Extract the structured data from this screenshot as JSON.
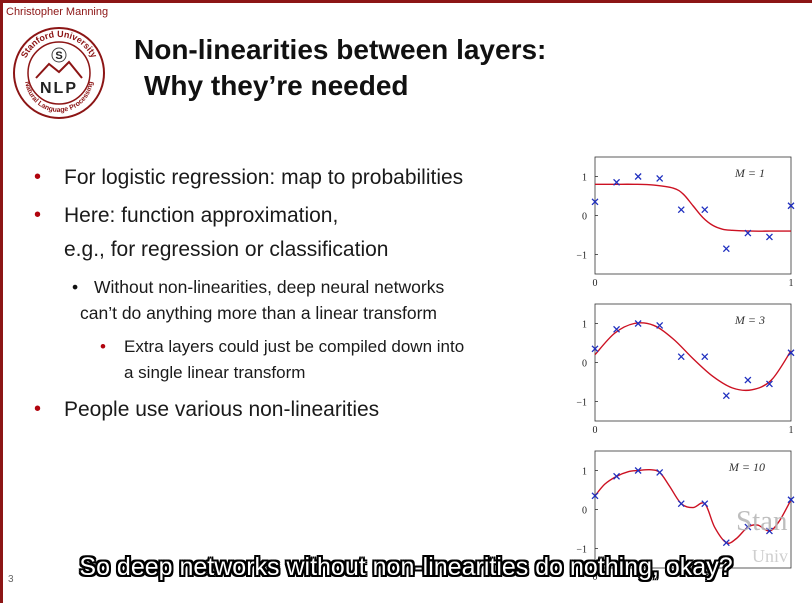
{
  "header": {
    "author": "Christopher Manning",
    "logo": {
      "top_text": "Stanford University",
      "center_letter": "S",
      "main_text": "NLP",
      "bottom_text": "Natural Language Processing"
    }
  },
  "slide": {
    "title_line1": "Non-linearities between layers:",
    "title_line2": "Why they’re needed",
    "bullets": [
      {
        "text": "For logistic regression: map to probabilities"
      },
      {
        "text": "Here: function approximation,"
      },
      {
        "text": "e.g., for regression or classification"
      },
      {
        "text": "Without non-linearities, deep neural networks"
      },
      {
        "text": "can’t do anything more than a linear transform"
      },
      {
        "text": "Extra layers could just be compiled down into"
      },
      {
        "text": "a single linear transform"
      },
      {
        "text": "People use various non-linearities"
      }
    ],
    "bullet_glyph": "•"
  },
  "chart_data": [
    {
      "type": "scatter",
      "annotation": "M = 1",
      "xlim": [
        0,
        1
      ],
      "ylim": [
        -1.5,
        1.5
      ],
      "yticks": [
        "1",
        "0",
        "−1"
      ],
      "xticks": [
        "0",
        "1"
      ],
      "points": {
        "x": [
          0.0,
          0.11,
          0.22,
          0.33,
          0.44,
          0.56,
          0.67,
          0.78,
          0.89,
          1.0
        ],
        "y": [
          0.35,
          0.85,
          1.0,
          0.95,
          0.15,
          0.15,
          -0.85,
          -0.45,
          -0.55,
          0.25
        ]
      },
      "fit": {
        "x": [
          0.0,
          0.1,
          0.2,
          0.3,
          0.4,
          0.45,
          0.5,
          0.55,
          0.6,
          0.65,
          0.7,
          0.8,
          0.9,
          1.0
        ],
        "y": [
          0.8,
          0.8,
          0.8,
          0.78,
          0.7,
          0.55,
          0.25,
          -0.05,
          -0.25,
          -0.35,
          -0.38,
          -0.4,
          -0.4,
          -0.4
        ]
      }
    },
    {
      "type": "scatter",
      "annotation": "M = 3",
      "xlim": [
        0,
        1
      ],
      "ylim": [
        -1.5,
        1.5
      ],
      "yticks": [
        "1",
        "0",
        "−1"
      ],
      "xticks": [
        "0",
        "1"
      ],
      "points": {
        "x": [
          0.0,
          0.11,
          0.22,
          0.33,
          0.44,
          0.56,
          0.67,
          0.78,
          0.89,
          1.0
        ],
        "y": [
          0.35,
          0.85,
          1.0,
          0.95,
          0.15,
          0.15,
          -0.85,
          -0.45,
          -0.55,
          0.25
        ]
      },
      "fit": {
        "x": [
          0.0,
          0.1,
          0.2,
          0.3,
          0.4,
          0.5,
          0.6,
          0.7,
          0.8,
          0.9,
          1.0
        ],
        "y": [
          0.2,
          0.75,
          1.0,
          0.95,
          0.6,
          0.1,
          -0.35,
          -0.65,
          -0.7,
          -0.45,
          0.3
        ]
      }
    },
    {
      "type": "scatter",
      "annotation": "M = 10",
      "xlim": [
        0,
        1
      ],
      "ylim": [
        -1.5,
        1.5
      ],
      "yticks": [
        "1",
        "0",
        "−1"
      ],
      "xticks": [
        "0"
      ],
      "points": {
        "x": [
          0.0,
          0.11,
          0.22,
          0.33,
          0.44,
          0.56,
          0.67,
          0.78,
          0.89,
          1.0
        ],
        "y": [
          0.35,
          0.85,
          1.0,
          0.95,
          0.15,
          0.15,
          -0.85,
          -0.45,
          -0.55,
          0.25
        ]
      },
      "fit": {
        "x": [
          0.0,
          0.05,
          0.11,
          0.17,
          0.22,
          0.28,
          0.33,
          0.38,
          0.44,
          0.5,
          0.56,
          0.61,
          0.67,
          0.72,
          0.78,
          0.83,
          0.89,
          0.94,
          1.0
        ],
        "y": [
          0.35,
          0.65,
          0.85,
          0.97,
          1.0,
          1.02,
          0.95,
          0.6,
          0.15,
          0.05,
          0.15,
          -0.45,
          -0.85,
          -0.75,
          -0.45,
          -0.4,
          -0.55,
          -0.3,
          0.25
        ]
      }
    }
  ],
  "overlay": {
    "subtitle": "So deep networks without non-linearities do nothing, okay?",
    "watermark_line1": "Stan",
    "watermark_line2": "Univ",
    "page_number": "3"
  },
  "colors": {
    "brand": "#8c1515",
    "fit_line": "#cc1122",
    "points": "#1f2fbf"
  }
}
